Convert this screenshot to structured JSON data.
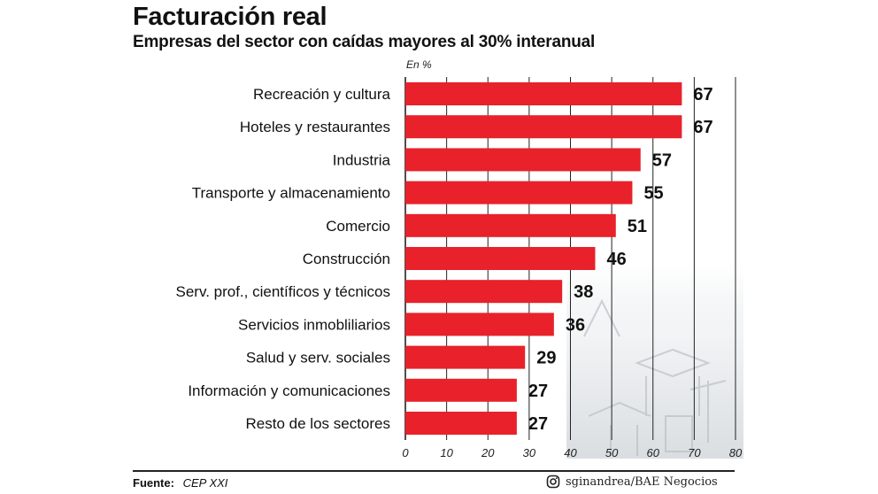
{
  "title": "Facturación real",
  "subtitle": "Empresas del sector con caídas mayores al 30% interanual",
  "unit_label": "En %",
  "footer": {
    "source_label": "Fuente:",
    "source_value": "CEP XXI",
    "credit": "sginandrea/BAE Negocios",
    "credit_icon": "instagram-icon"
  },
  "colors": {
    "bar": "#e8212a",
    "gridline": "#222222",
    "text": "#111111"
  },
  "chart_data": {
    "type": "bar",
    "orientation": "horizontal",
    "title": "Facturación real",
    "subtitle": "Empresas del sector con caídas mayores al 30% interanual",
    "unit": "En %",
    "categories": [
      "Recreación y cultura",
      "Hoteles y restaurantes",
      "Industria",
      "Transporte y almacenamiento",
      "Comercio",
      "Construcción",
      "Serv. prof., científicos y técnicos",
      "Servicios inmobliliarios",
      "Salud y serv. sociales",
      "Información y comunicaciones",
      "Resto de los sectores"
    ],
    "values": [
      67,
      67,
      57,
      55,
      51,
      46,
      38,
      36,
      29,
      27,
      27
    ],
    "xlim": [
      0,
      80
    ],
    "xticks": [
      0,
      10,
      20,
      30,
      40,
      50,
      60,
      70,
      80
    ],
    "grid": true,
    "data_labels": true
  }
}
